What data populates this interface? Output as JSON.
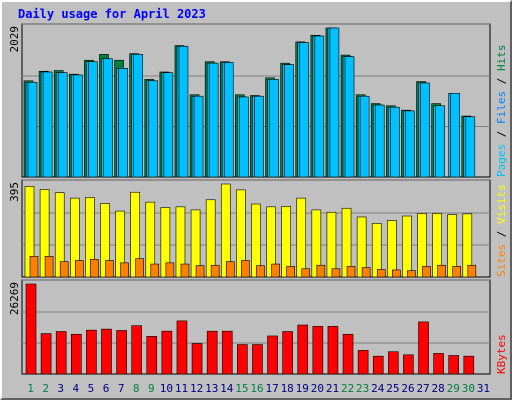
{
  "title": "Daily usage for April 2023",
  "colors": {
    "hits_side": "#008040",
    "hits_front": "#00c0ff",
    "files_front": "#00c0ff",
    "pages": "#00c0ff",
    "visits": "#ffff00",
    "sites": "#ff8000",
    "kbytes": "#ff0000",
    "weekend_label": "#008040",
    "weekday_label": "#000080",
    "plot_bg": "#c0c0c0"
  },
  "labels": {
    "top_max": "2029",
    "mid_max": "395",
    "bot_max": "26269",
    "top_right": [
      "Pages",
      " / ",
      "Files",
      " / ",
      "Hits"
    ],
    "mid_right": [
      "Sites",
      " / ",
      "Visits"
    ],
    "bot_right": [
      "KBytes"
    ]
  },
  "chart_data": [
    {
      "type": "bar",
      "title": "Daily usage for April 2023",
      "ylabel": "Pages / Files / Hits",
      "ylim": [
        0,
        2029
      ],
      "categories": [
        "1",
        "2",
        "3",
        "4",
        "5",
        "6",
        "7",
        "8",
        "9",
        "10",
        "11",
        "12",
        "13",
        "14",
        "15",
        "16",
        "17",
        "18",
        "19",
        "20",
        "21",
        "22",
        "23",
        "24",
        "25",
        "26",
        "27",
        "28",
        "29",
        "30",
        "31"
      ],
      "weekend_days": [
        1,
        2,
        8,
        9,
        15,
        16,
        22,
        23,
        29,
        30
      ],
      "series": [
        {
          "name": "Hits",
          "values": [
            1310,
            1440,
            1450,
            1400,
            1590,
            1670,
            1590,
            1680,
            1330,
            1430,
            1790,
            1120,
            1570,
            1570,
            1120,
            1110,
            1350,
            1550,
            1840,
            1930,
            2029,
            1660,
            1120,
            1000,
            970,
            910,
            1300,
            1000,
            null,
            830,
            null
          ]
        },
        {
          "name": "Files",
          "values": [
            1290,
            1430,
            1420,
            1390,
            1570,
            1610,
            1480,
            1670,
            1310,
            1420,
            1780,
            1100,
            1550,
            1560,
            1090,
            1100,
            1330,
            1530,
            1830,
            1920,
            2029,
            1640,
            1100,
            980,
            950,
            900,
            1280,
            970,
            1140,
            820,
            null
          ]
        },
        {
          "name": "Pages",
          "values": [
            1290,
            1430,
            1420,
            1390,
            1570,
            1610,
            1480,
            1670,
            1310,
            1420,
            1780,
            1100,
            1550,
            1560,
            1090,
            1100,
            1330,
            1530,
            1830,
            1920,
            2029,
            1640,
            1100,
            980,
            950,
            900,
            1280,
            970,
            1140,
            820,
            null
          ]
        }
      ]
    },
    {
      "type": "bar",
      "ylabel": "Sites / Visits",
      "ylim": [
        0,
        395
      ],
      "categories": [
        "1",
        "2",
        "3",
        "4",
        "5",
        "6",
        "7",
        "8",
        "9",
        "10",
        "11",
        "12",
        "13",
        "14",
        "15",
        "16",
        "17",
        "18",
        "19",
        "20",
        "21",
        "22",
        "23",
        "24",
        "25",
        "26",
        "27",
        "28",
        "29",
        "30",
        "31"
      ],
      "series": [
        {
          "name": "Visits",
          "values": [
            385,
            372,
            358,
            335,
            338,
            312,
            280,
            360,
            318,
            295,
            298,
            285,
            328,
            395,
            370,
            310,
            298,
            300,
            335,
            285,
            275,
            292,
            255,
            228,
            240,
            259,
            270,
            270,
            265,
            268,
            null
          ]
        },
        {
          "name": "Sites",
          "values": [
            88,
            88,
            65,
            70,
            75,
            70,
            60,
            78,
            55,
            60,
            55,
            48,
            50,
            65,
            70,
            48,
            55,
            45,
            35,
            50,
            35,
            45,
            40,
            32,
            30,
            27,
            45,
            50,
            45,
            50,
            null
          ]
        }
      ]
    },
    {
      "type": "bar",
      "ylabel": "KBytes",
      "ylim": [
        0,
        26269
      ],
      "categories": [
        "1",
        "2",
        "3",
        "4",
        "5",
        "6",
        "7",
        "8",
        "9",
        "10",
        "11",
        "12",
        "13",
        "14",
        "15",
        "16",
        "17",
        "18",
        "19",
        "20",
        "21",
        "22",
        "23",
        "24",
        "25",
        "26",
        "27",
        "28",
        "29",
        "30",
        "31"
      ],
      "series": [
        {
          "name": "KBytes",
          "values": [
            26269,
            11800,
            12400,
            11600,
            12800,
            13100,
            12700,
            14100,
            11000,
            12500,
            15500,
            8900,
            12500,
            12500,
            8600,
            8600,
            11100,
            12400,
            14300,
            13900,
            13900,
            11600,
            6900,
            5200,
            6500,
            5600,
            15200,
            6000,
            5400,
            5200,
            null
          ]
        }
      ]
    }
  ]
}
